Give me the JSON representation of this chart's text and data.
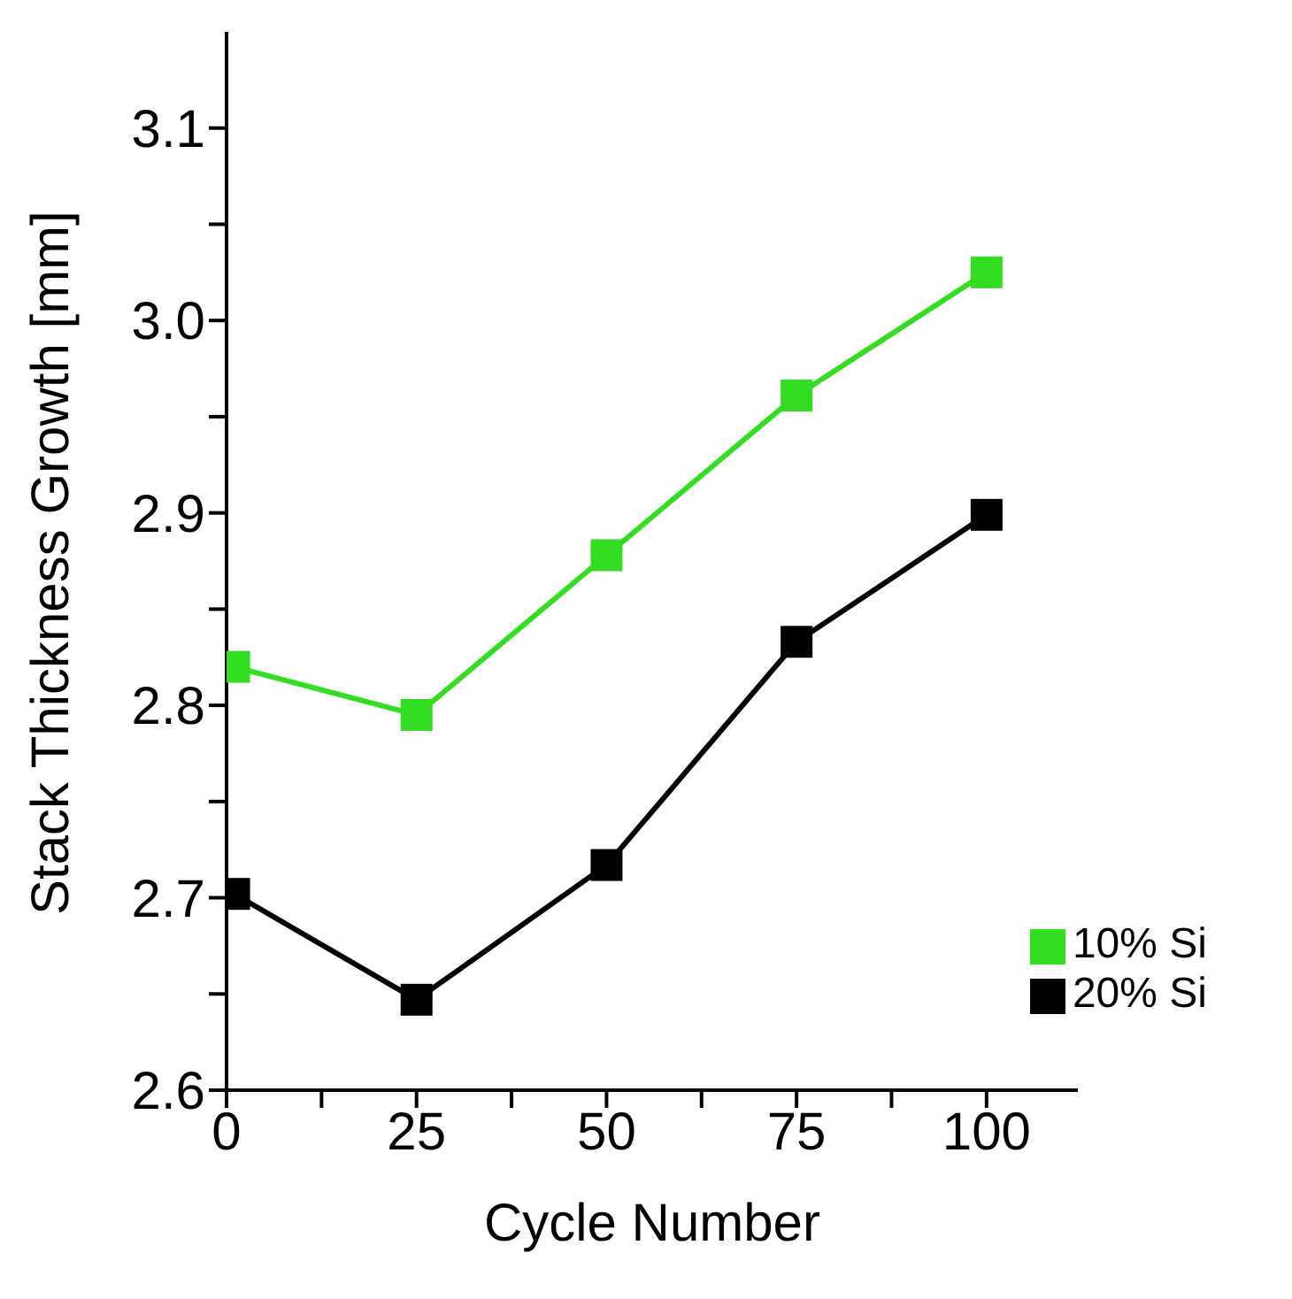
{
  "chart_data": {
    "type": "line",
    "xlabel": "Cycle Number",
    "ylabel": "Stack Thickness Growth [mm]",
    "x": [
      1,
      25,
      50,
      75,
      100
    ],
    "series": [
      {
        "name": "10% Si",
        "color": "#33dd22",
        "values": [
          2.82,
          2.795,
          2.878,
          2.961,
          3.025
        ]
      },
      {
        "name": "20% Si",
        "color": "#000000",
        "values": [
          2.702,
          2.647,
          2.717,
          2.833,
          2.899
        ]
      }
    ],
    "xlim": [
      0,
      112
    ],
    "xticks": [
      0,
      {
        "value": 12.5,
        "label": null
      },
      25,
      {
        "value": 37.5,
        "label": null
      },
      50,
      {
        "value": 62.5,
        "label": null
      },
      75,
      {
        "value": 87.5,
        "label": null
      },
      100
    ],
    "ylim": [
      2.6,
      3.15
    ],
    "yticks": [
      2.6,
      {
        "value": 2.65,
        "label": null
      },
      2.7,
      {
        "value": 2.75,
        "label": null
      },
      2.8,
      {
        "value": 2.85,
        "label": null
      },
      2.9,
      {
        "value": 2.95,
        "label": null
      },
      {
        "value": 3,
        "label": "3.0"
      },
      {
        "value": 3.05,
        "label": null
      },
      3.1
    ],
    "grid": false,
    "legend": "bottom right",
    "marker": "square",
    "line_style": "solid"
  }
}
